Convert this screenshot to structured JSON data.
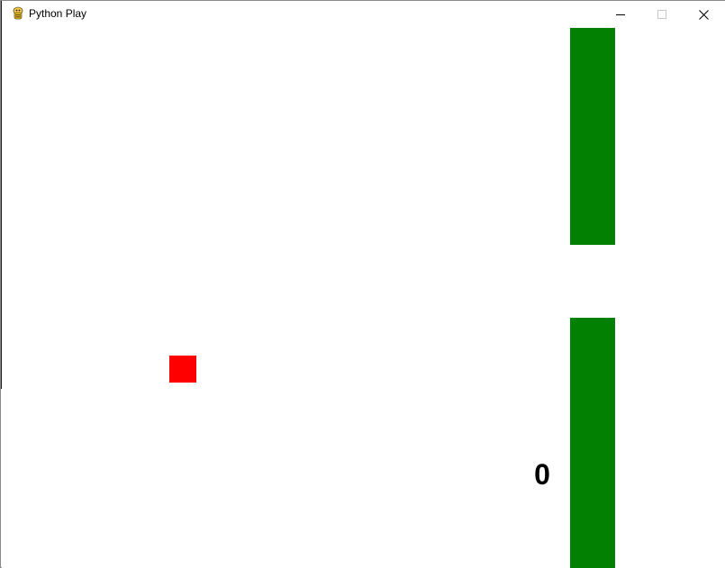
{
  "window": {
    "title": "Python Play",
    "icon": "pygame-snake-icon",
    "controls": {
      "minimize_icon": "minimize-icon",
      "maximize_icon": "maximize-icon",
      "close_icon": "close-icon"
    }
  },
  "game": {
    "score": "0",
    "colors": {
      "background": "#ffffff",
      "pipe": "#018001",
      "player": "#ff0000",
      "score_text": "#000000"
    }
  }
}
